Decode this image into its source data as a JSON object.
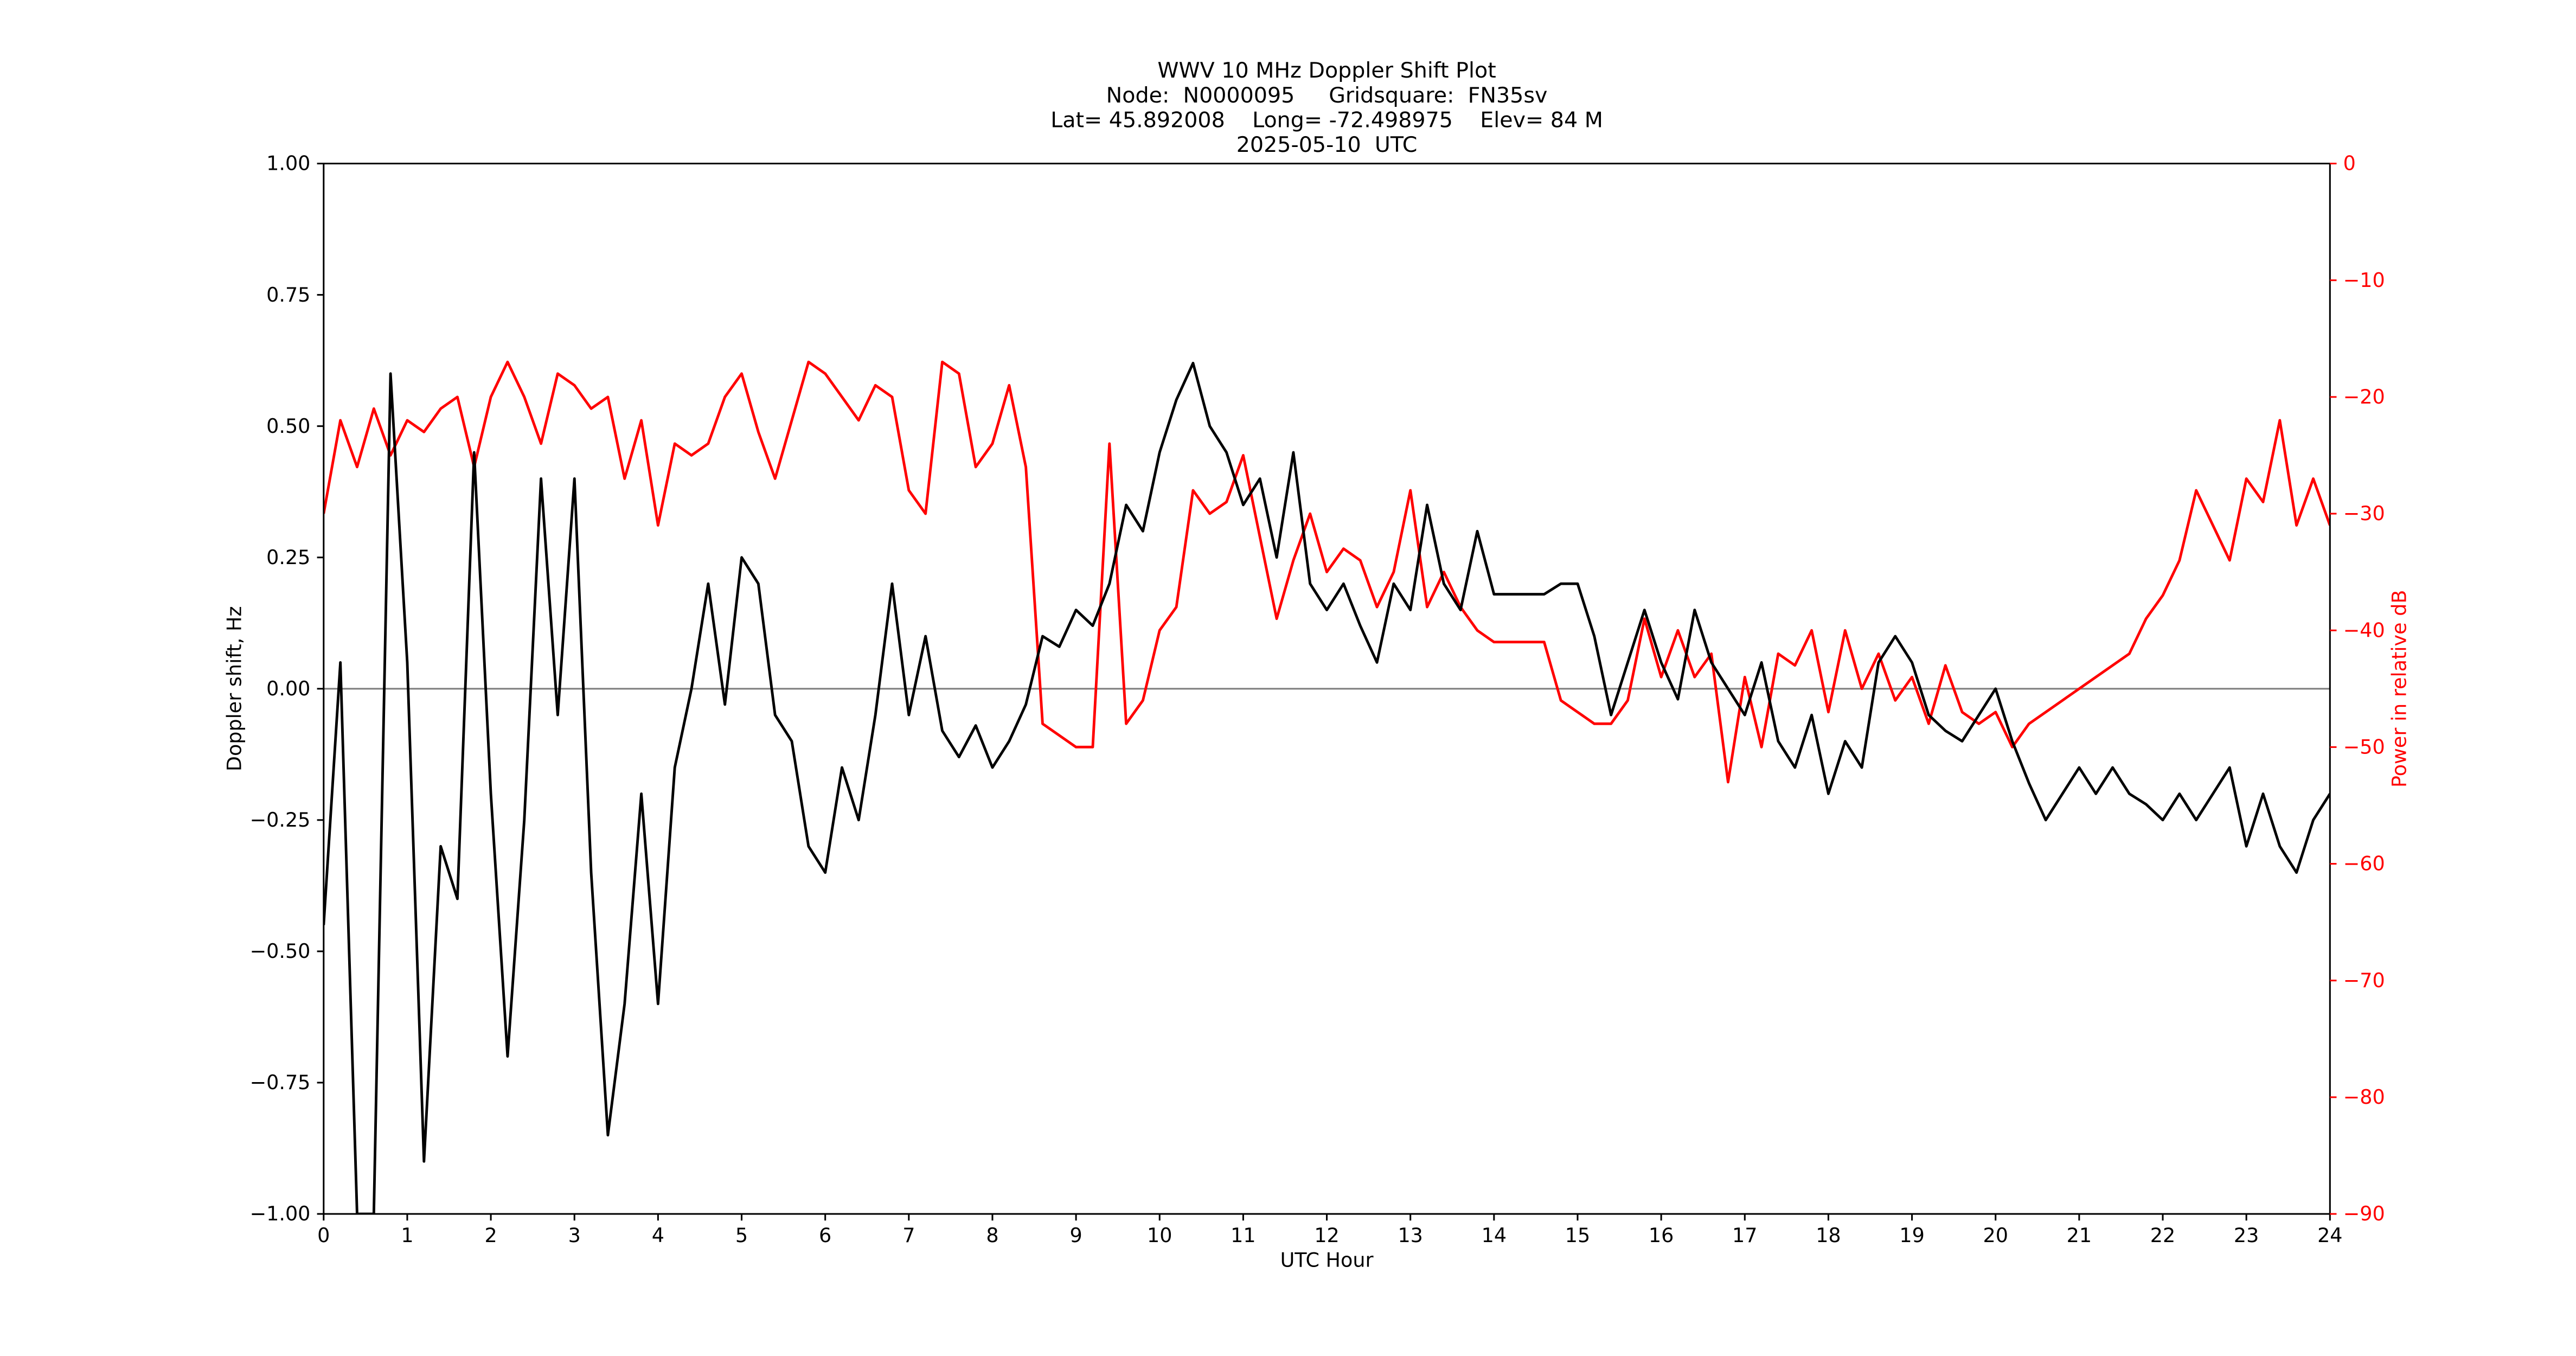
{
  "chart_data": {
    "type": "line",
    "title": [
      "WWV 10 MHz Doppler Shift Plot",
      "Node:  N0000095     Gridsquare:  FN35sv",
      "Lat= 45.892008    Long= -72.498975    Elev= 84 M",
      "2025-05-10  UTC"
    ],
    "xlabel": "UTC Hour",
    "ylabel": "Doppler shift, Hz",
    "y2label": "Power in relative dB",
    "x": [
      0,
      0.2,
      0.4,
      0.6,
      0.8,
      1,
      1.2,
      1.4,
      1.6,
      1.8,
      2,
      2.2,
      2.4,
      2.6,
      2.8,
      3,
      3.2,
      3.4,
      3.6,
      3.8,
      4,
      4.2,
      4.4,
      4.6,
      4.8,
      5,
      5.2,
      5.4,
      5.6,
      5.8,
      6,
      6.2,
      6.4,
      6.6,
      6.8,
      7,
      7.2,
      7.4,
      7.6,
      7.8,
      8,
      8.2,
      8.4,
      8.6,
      8.8,
      9,
      9.2,
      9.4,
      9.6,
      9.8,
      10,
      10.2,
      10.4,
      10.6,
      10.8,
      11,
      11.2,
      11.4,
      11.6,
      11.8,
      12,
      12.2,
      12.4,
      12.6,
      12.8,
      13,
      13.2,
      13.4,
      13.6,
      13.8,
      14,
      14.2,
      14.4,
      14.6,
      14.8,
      15,
      15.2,
      15.4,
      15.6,
      15.8,
      16,
      16.2,
      16.4,
      16.6,
      16.8,
      17,
      17.2,
      17.4,
      17.6,
      17.8,
      18,
      18.2,
      18.4,
      18.6,
      18.8,
      19,
      19.2,
      19.4,
      19.6,
      19.8,
      20,
      20.2,
      20.4,
      20.6,
      20.8,
      21,
      21.2,
      21.4,
      21.6,
      21.8,
      22,
      22.2,
      22.4,
      22.6,
      22.8,
      23,
      23.2,
      23.4,
      23.6,
      23.8,
      24
    ],
    "series": [
      {
        "name": "Doppler shift",
        "color": "#000000",
        "axis": "y",
        "values": [
          -0.45,
          0.05,
          -1.0,
          -1.0,
          0.6,
          0.05,
          -0.9,
          -0.3,
          -0.4,
          0.45,
          -0.2,
          -0.7,
          -0.25,
          0.4,
          -0.05,
          0.4,
          -0.35,
          -0.85,
          -0.6,
          -0.2,
          -0.6,
          -0.15,
          0.0,
          0.2,
          -0.03,
          0.25,
          0.2,
          -0.05,
          -0.1,
          -0.3,
          -0.35,
          -0.15,
          -0.25,
          -0.05,
          0.2,
          -0.05,
          0.1,
          -0.08,
          -0.13,
          -0.07,
          -0.15,
          -0.1,
          -0.03,
          0.1,
          0.08,
          0.15,
          0.12,
          0.2,
          0.35,
          0.3,
          0.45,
          0.55,
          0.62,
          0.5,
          0.45,
          0.35,
          0.4,
          0.25,
          0.45,
          0.2,
          0.15,
          0.2,
          0.12,
          0.05,
          0.2,
          0.15,
          0.35,
          0.2,
          0.15,
          0.3,
          0.18,
          0.18,
          0.18,
          0.18,
          0.2,
          0.2,
          0.1,
          -0.05,
          0.05,
          0.15,
          0.05,
          -0.02,
          0.15,
          0.05,
          0.0,
          -0.05,
          0.05,
          -0.1,
          -0.15,
          -0.05,
          -0.2,
          -0.1,
          -0.15,
          0.05,
          0.1,
          0.05,
          -0.05,
          -0.08,
          -0.1,
          -0.05,
          0.0,
          -0.1,
          -0.18,
          -0.25,
          -0.2,
          -0.15,
          -0.2,
          -0.15,
          -0.2,
          -0.22,
          -0.25,
          -0.2,
          -0.25,
          -0.2,
          -0.15,
          -0.3,
          -0.2,
          -0.3,
          -0.35,
          -0.25,
          -0.2
        ]
      },
      {
        "name": "Power",
        "color": "#ff0000",
        "axis": "y2",
        "values": [
          -30,
          -22,
          -26,
          -21,
          -25,
          -22,
          -23,
          -21,
          -20,
          -26,
          -20,
          -17,
          -20,
          -24,
          -18,
          -19,
          -21,
          -20,
          -27,
          -22,
          -31,
          -24,
          -25,
          -24,
          -20,
          -18,
          -23,
          -27,
          -22,
          -17,
          -18,
          -20,
          -22,
          -19,
          -20,
          -28,
          -30,
          -17,
          -18,
          -26,
          -24,
          -19,
          -26,
          -48,
          -49,
          -50,
          -50,
          -24,
          -48,
          -46,
          -40,
          -38,
          -28,
          -30,
          -29,
          -25,
          -32,
          -39,
          -34,
          -30,
          -35,
          -33,
          -34,
          -38,
          -35,
          -28,
          -38,
          -35,
          -38,
          -40,
          -41,
          -41,
          -41,
          -41,
          -46,
          -47,
          -48,
          -48,
          -46,
          -39,
          -44,
          -40,
          -44,
          -42,
          -53,
          -44,
          -50,
          -42,
          -43,
          -40,
          -47,
          -40,
          -45,
          -42,
          -46,
          -44,
          -48,
          -43,
          -47,
          -48,
          -47,
          -50,
          -48,
          -47,
          -46,
          -45,
          -44,
          -43,
          -42,
          -39,
          -37,
          -34,
          -28,
          -31,
          -34,
          -27,
          -29,
          -22,
          -31,
          -27,
          -31
        ]
      }
    ],
    "hline": 0,
    "xlim": [
      0,
      24
    ],
    "xticks": [
      0,
      1,
      2,
      3,
      4,
      5,
      6,
      7,
      8,
      9,
      10,
      11,
      12,
      13,
      14,
      15,
      16,
      17,
      18,
      19,
      20,
      21,
      22,
      23,
      24
    ],
    "ylim": [
      -1,
      1
    ],
    "yticks": [
      {
        "value": -1,
        "label": "−1.00"
      },
      {
        "value": -0.75,
        "label": "−0.75"
      },
      {
        "value": -0.5,
        "label": "−0.50"
      },
      {
        "value": -0.25,
        "label": "−0.25"
      },
      {
        "value": 0,
        "label": "0.00"
      },
      {
        "value": 0.25,
        "label": "0.25"
      },
      {
        "value": 0.5,
        "label": "0.50"
      },
      {
        "value": 0.75,
        "label": "0.75"
      },
      {
        "value": 1,
        "label": "1.00"
      }
    ],
    "y2lim": [
      -90,
      0
    ],
    "y2ticks": [
      {
        "value": -90,
        "label": "−90"
      },
      {
        "value": -80,
        "label": "−80"
      },
      {
        "value": -70,
        "label": "−70"
      },
      {
        "value": -60,
        "label": "−60"
      },
      {
        "value": -50,
        "label": "−50"
      },
      {
        "value": -40,
        "label": "−40"
      },
      {
        "value": -30,
        "label": "−30"
      },
      {
        "value": -20,
        "label": "−20"
      },
      {
        "value": -10,
        "label": "−10"
      },
      0
    ],
    "y2color": "#ff0000"
  }
}
